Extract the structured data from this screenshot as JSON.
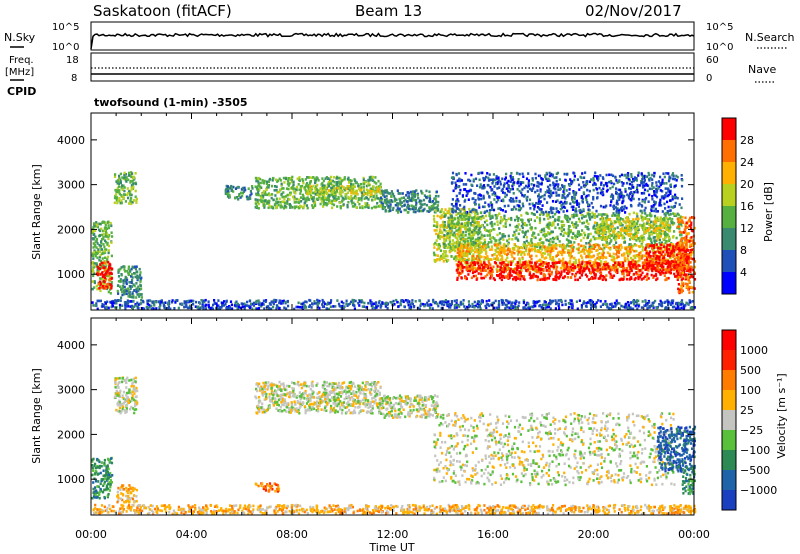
{
  "header": {
    "station": "Saskatoon (fitACF)",
    "beam": "Beam 13",
    "date": "02/Nov/2017"
  },
  "noise_panel": {
    "left_label": "N.Sky",
    "right_label": "N.Search",
    "left_ticks": [
      "10^5",
      "10^0"
    ],
    "right_ticks": [
      "10^5",
      "10^0"
    ],
    "series_color": "#000000"
  },
  "freq_panel": {
    "left_label_1": "Freq.",
    "left_label_2": "[MHz]",
    "cpid_label": "CPID",
    "right_label": "Nave",
    "left_ticks": [
      "18",
      "8"
    ],
    "right_ticks": [
      "60",
      "0"
    ],
    "cpid_text": "twofsound (1-min) -3505"
  },
  "chart_data": [
    {
      "type": "heatmap",
      "name": "power",
      "ylabel": "Slant Range [km]",
      "ylim": [
        200,
        4600
      ],
      "y_ticks": [
        1000,
        2000,
        3000,
        4000
      ],
      "xlim": [
        0,
        24
      ],
      "colorbar": {
        "label": "Power [dB]",
        "ticks": [
          "4",
          "8",
          "12",
          "16",
          "20",
          "24",
          "28"
        ],
        "colors": [
          "#0000ff",
          "#1f4fb8",
          "#3a8a70",
          "#55b040",
          "#b8d020",
          "#ffb000",
          "#ff7000",
          "#ff0000"
        ]
      },
      "regions": [
        {
          "t": [
            0.0,
            0.8
          ],
          "r": [
            600,
            2200
          ],
          "level": 3
        },
        {
          "t": [
            0.2,
            0.8
          ],
          "r": [
            700,
            1300
          ],
          "level": 7
        },
        {
          "t": [
            0.9,
            1.8
          ],
          "r": [
            2600,
            3300
          ],
          "level": 3
        },
        {
          "t": [
            1.0,
            2.0
          ],
          "r": [
            500,
            1200
          ],
          "level": 2
        },
        {
          "t": [
            5.3,
            6.4
          ],
          "r": [
            2700,
            3000
          ],
          "level": 2
        },
        {
          "t": [
            6.5,
            11.5
          ],
          "r": [
            2500,
            3200
          ],
          "level": 3
        },
        {
          "t": [
            8.5,
            11.5
          ],
          "r": [
            2800,
            3000
          ],
          "level": 4
        },
        {
          "t": [
            11.5,
            13.8
          ],
          "r": [
            2400,
            2900
          ],
          "level": 2
        },
        {
          "t": [
            13.6,
            15.5
          ],
          "r": [
            1300,
            2500
          ],
          "level": 4
        },
        {
          "t": [
            14.0,
            23.5
          ],
          "r": [
            1600,
            2400
          ],
          "level": 3
        },
        {
          "t": [
            14.5,
            23.5
          ],
          "r": [
            1100,
            1700
          ],
          "level": 5
        },
        {
          "t": [
            14.5,
            23.8
          ],
          "r": [
            900,
            1300
          ],
          "level": 7
        },
        {
          "t": [
            20.0,
            23.0
          ],
          "r": [
            1800,
            2300
          ],
          "level": 4
        },
        {
          "t": [
            22.0,
            23.8
          ],
          "r": [
            1100,
            1700
          ],
          "level": 7
        },
        {
          "t": [
            23.3,
            24.0
          ],
          "r": [
            600,
            2300
          ],
          "level": 6
        },
        {
          "t": [
            14.3,
            23.5
          ],
          "r": [
            2400,
            3300
          ],
          "level": 1
        },
        {
          "t": [
            0.0,
            24.0
          ],
          "r": [
            250,
            450
          ],
          "level": 1
        }
      ]
    },
    {
      "type": "heatmap",
      "name": "velocity",
      "ylabel": "Slant Range [km]",
      "ylim": [
        200,
        4600
      ],
      "y_ticks": [
        1000,
        2000,
        3000,
        4000
      ],
      "xlim": [
        0,
        24
      ],
      "colorbar": {
        "label": "Velocity [m s⁻¹]",
        "ticks": [
          "1000",
          "500",
          "100",
          "25",
          "−25",
          "−100",
          "−500",
          "−1000"
        ],
        "colors": [
          "#1a3fbf",
          "#1f63a8",
          "#2e8a55",
          "#58c03a",
          "#c4c4c0",
          "#ffb000",
          "#ff7c00",
          "#ff2000",
          "#ff0000"
        ]
      },
      "regions": [
        {
          "t": [
            0.9,
            1.8
          ],
          "r": [
            2500,
            3300
          ],
          "level": 4
        },
        {
          "t": [
            6.5,
            11.5
          ],
          "r": [
            2500,
            3200
          ],
          "level": 4
        },
        {
          "t": [
            11.5,
            13.8
          ],
          "r": [
            2400,
            2900
          ],
          "level": 4
        },
        {
          "t": [
            13.6,
            23.2
          ],
          "r": [
            900,
            2500
          ],
          "level": 4
        },
        {
          "t": [
            0.0,
            0.8
          ],
          "r": [
            600,
            1500
          ],
          "level": 2
        },
        {
          "t": [
            1.0,
            1.8
          ],
          "r": [
            500,
            900
          ],
          "level": 5
        },
        {
          "t": [
            6.5,
            7.5
          ],
          "r": [
            750,
            950
          ],
          "level": 6
        },
        {
          "t": [
            22.5,
            24.0
          ],
          "r": [
            1200,
            2200
          ],
          "level": 1
        },
        {
          "t": [
            23.5,
            24.0
          ],
          "r": [
            700,
            1200
          ],
          "level": 2
        },
        {
          "t": [
            0.0,
            24.0
          ],
          "r": [
            250,
            450
          ],
          "level": 5
        }
      ]
    }
  ],
  "x_axis": {
    "label": "Time UT",
    "ticks": [
      "00:00",
      "04:00",
      "08:00",
      "12:00",
      "16:00",
      "20:00",
      "00:00"
    ]
  }
}
